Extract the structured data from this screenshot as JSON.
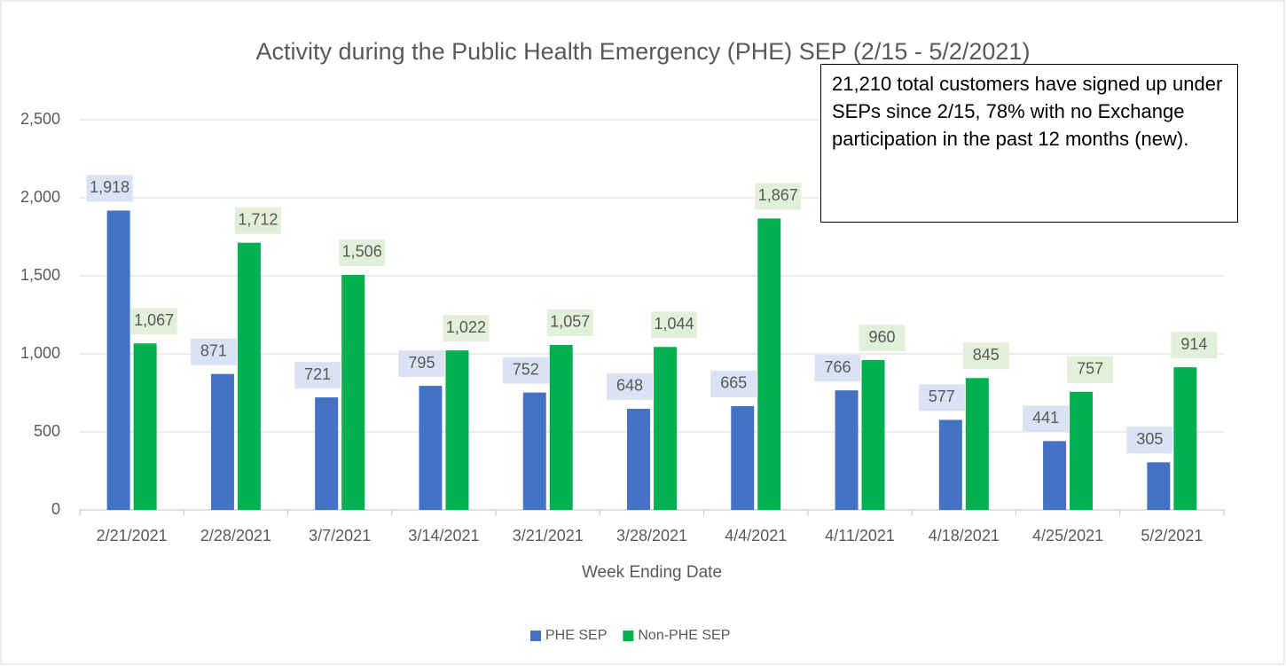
{
  "chart_data": {
    "type": "bar",
    "title": "Activity during the Public Health Emergency (PHE) SEP (2/15 - 5/2/2021)",
    "x_label": "Week  Ending Date",
    "annotation": "21,210 total customers have signed up under SEPs since 2/15, 78% with no Exchange participation in the past 12 months (new).",
    "categories": [
      "2/21/2021",
      "2/28/2021",
      "3/7/2021",
      "3/14/2021",
      "3/21/2021",
      "3/28/2021",
      "4/4/2021",
      "4/11/2021",
      "4/18/2021",
      "4/25/2021",
      "5/2/2021"
    ],
    "series": [
      {
        "name": "PHE SEP",
        "color": "#4472c4",
        "label_color": "#dae3f3",
        "values": [
          1918,
          871,
          721,
          795,
          752,
          648,
          665,
          766,
          577,
          441,
          305
        ],
        "value_labels": [
          "1,918",
          "871",
          "721",
          "795",
          "752",
          "648",
          "665",
          "766",
          "577",
          "441",
          "305"
        ]
      },
      {
        "name": "Non-PHE SEP",
        "color": "#00b050",
        "label_color": "#e2f0d9",
        "values": [
          1067,
          1712,
          1506,
          1022,
          1057,
          1044,
          1867,
          960,
          845,
          757,
          914
        ],
        "value_labels": [
          "1,067",
          "1,712",
          "1,506",
          "1,022",
          "1,057",
          "1,044",
          "1,867",
          "960",
          "845",
          "757",
          "914"
        ]
      }
    ],
    "ylim": [
      0,
      2500
    ],
    "yticks": [
      0,
      500,
      {
        "value": 1000,
        "label": "1,000"
      },
      {
        "value": 1500,
        "label": "1,500"
      },
      {
        "value": 2000,
        "label": "2,000"
      },
      {
        "value": 2500,
        "label": "2,500"
      }
    ],
    "grid": true,
    "legend": "bottom"
  }
}
